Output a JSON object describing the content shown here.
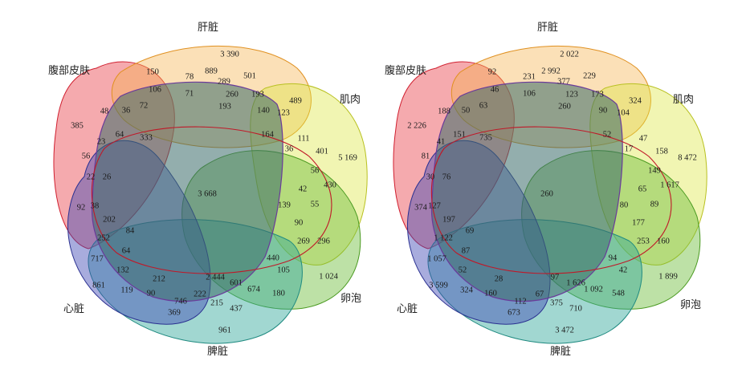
{
  "set_labels": {
    "liver": "肝脏",
    "skin": "腹部皮肤",
    "muscle": "肌肉",
    "follicle": "卵泡",
    "spleen": "脾脏",
    "heart": "心脏"
  },
  "colors": {
    "skin": "#e8343f",
    "liver": "#f6b24a",
    "muscle": "#dce63e",
    "follicle": "#6dbd3a",
    "spleen": "#2fa79a",
    "heart": "#3f47b3"
  },
  "left_diagram": {
    "values": [
      "3 390",
      "150",
      "78",
      "889",
      "501",
      "106",
      "71",
      "289",
      "260",
      "193",
      "489",
      "48",
      "36",
      "72",
      "193",
      "140",
      "123",
      "385",
      "23",
      "64",
      "333",
      "164",
      "111",
      "401",
      "5 169",
      "56",
      "36",
      "22",
      "26",
      "3 668",
      "56",
      "430",
      "42",
      "92",
      "38",
      "55",
      "202",
      "139",
      "84",
      "90",
      "252",
      "269",
      "296",
      "64",
      "717",
      "440",
      "132",
      "105",
      "1 024",
      "861",
      "212",
      "2 444",
      "601",
      "90",
      "746",
      "222",
      "674",
      "180",
      "119",
      "369",
      "215",
      "437",
      "961"
    ]
  },
  "right_diagram": {
    "values": [
      "2 022",
      "92",
      "231",
      "2 992",
      "229",
      "46",
      "106",
      "377",
      "123",
      "173",
      "324",
      "188",
      "50",
      "63",
      "260",
      "90",
      "104",
      "2 226",
      "41",
      "151",
      "735",
      "52",
      "47",
      "158",
      "8 472",
      "81",
      "17",
      "30",
      "76",
      "260",
      "149",
      "1 617",
      "65",
      "374",
      "127",
      "89",
      "197",
      "80",
      "69",
      "177",
      "1 122",
      "253",
      "160",
      "87",
      "1 057",
      "94",
      "52",
      "42",
      "1 899",
      "3 599",
      "28",
      "97",
      "1 626",
      "160",
      "112",
      "67",
      "1 092",
      "548",
      "324",
      "673",
      "375",
      "710",
      "3 472"
    ]
  }
}
